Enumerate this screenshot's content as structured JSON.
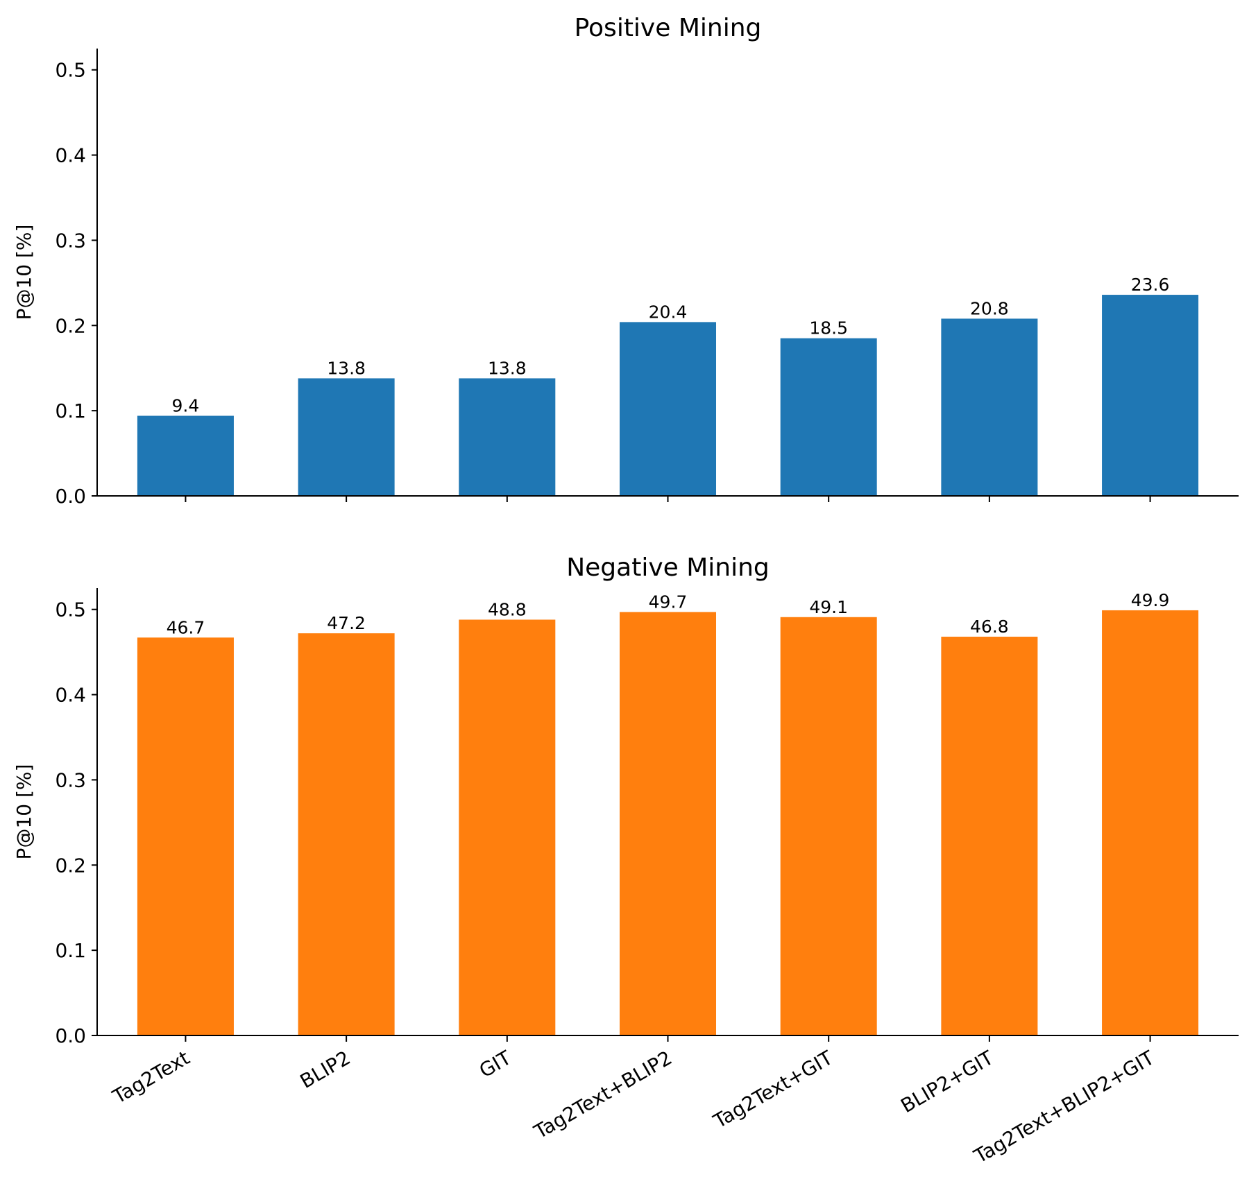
{
  "chart_data": [
    {
      "type": "bar",
      "title": "Positive Mining",
      "ylabel": "P@10 [%]",
      "xlabel": "",
      "categories": [
        "Tag2Text",
        "BLIP2",
        "GIT",
        "Tag2Text+BLIP2",
        "Tag2Text+GIT",
        "BLIP2+GIT",
        "Tag2Text+BLIP2+GIT"
      ],
      "values": [
        0.094,
        0.138,
        0.138,
        0.204,
        0.185,
        0.208,
        0.236
      ],
      "data_labels": [
        "9.4",
        "13.8",
        "13.8",
        "20.4",
        "18.5",
        "20.8",
        "23.6"
      ],
      "ylim": [
        0,
        0.525
      ],
      "yticks": [
        "0.0",
        "0.1",
        "0.2",
        "0.3",
        "0.4",
        "0.5"
      ],
      "show_xtick_labels": false,
      "color": "#1f77b4",
      "grid": false
    },
    {
      "type": "bar",
      "title": "Negative Mining",
      "ylabel": "P@10 [%]",
      "xlabel": "",
      "categories": [
        "Tag2Text",
        "BLIP2",
        "GIT",
        "Tag2Text+BLIP2",
        "Tag2Text+GIT",
        "BLIP2+GIT",
        "Tag2Text+BLIP2+GIT"
      ],
      "values": [
        0.467,
        0.472,
        0.488,
        0.497,
        0.491,
        0.468,
        0.499
      ],
      "data_labels": [
        "46.7",
        "47.2",
        "48.8",
        "49.7",
        "49.1",
        "46.8",
        "49.9"
      ],
      "ylim": [
        0,
        0.525
      ],
      "yticks": [
        "0.0",
        "0.1",
        "0.2",
        "0.3",
        "0.4",
        "0.5"
      ],
      "show_xtick_labels": true,
      "color": "#ff7f0e",
      "grid": false
    }
  ]
}
